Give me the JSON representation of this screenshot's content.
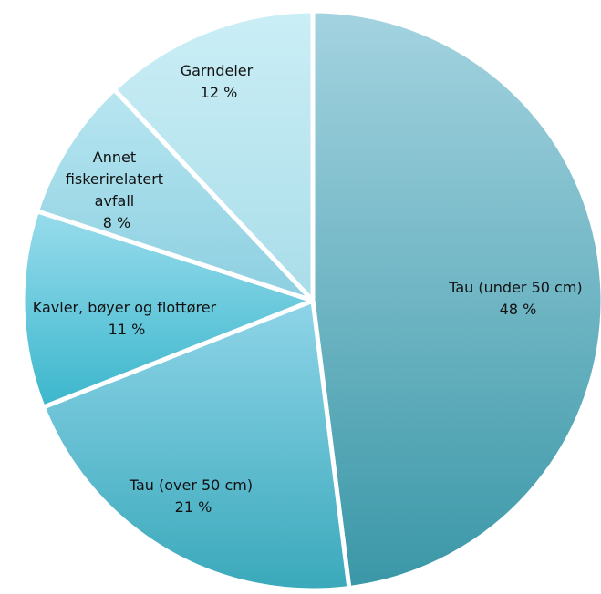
{
  "chart_data": {
    "type": "pie",
    "start_angle_deg": 0,
    "direction": "clockwise",
    "slices": [
      {
        "label": "Tau (under 50 cm)",
        "value": 48,
        "value_label": "48 %",
        "color_light": "#a4d3e0",
        "color_dark": "#3a97a7"
      },
      {
        "label": "Tau (over 50 cm)",
        "value": 21,
        "value_label": "21 %",
        "color_light": "#8fd4e8",
        "color_dark": "#3aa9bb"
      },
      {
        "label": "Kavler, bøyer og flottører",
        "value": 11,
        "value_label": "11 %",
        "color_light": "#98dcec",
        "color_dark": "#3bb6cc"
      },
      {
        "label": "Annet fiskerirelatert avfall",
        "value": 8,
        "value_label": "8 %",
        "color_light": "#b8e6f1",
        "color_dark": "#8ccfe0"
      },
      {
        "label": "Garndeler",
        "value": 12,
        "value_label": "12 %",
        "color_light": "#cbeef6",
        "color_dark": "#a9dde9"
      }
    ]
  }
}
